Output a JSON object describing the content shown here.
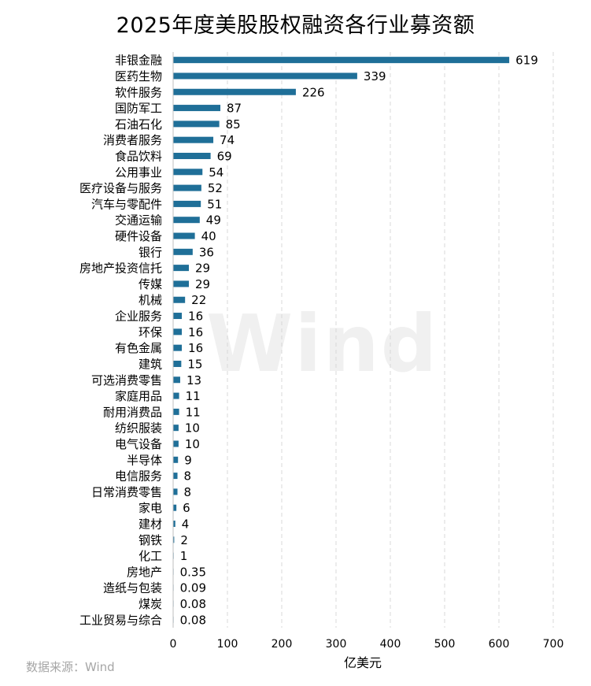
{
  "title": "2025年度美股股权融资各行业募资额",
  "source": "数据来源：Wind",
  "watermark": "Wind",
  "chart_data": {
    "type": "bar",
    "orientation": "horizontal",
    "title": "2025年度美股股权融资各行业募资额",
    "xlabel": "亿美元",
    "ylabel": "",
    "xlim": [
      0,
      700
    ],
    "xticks": [
      0,
      100,
      200,
      300,
      400,
      500,
      600,
      700
    ],
    "grid": "vertical dashed",
    "bar_color": "#1f6f98",
    "categories": [
      "非银金融",
      "医药生物",
      "软件服务",
      "国防军工",
      "石油石化",
      "消费者服务",
      "食品饮料",
      "公用事业",
      "医疗设备与服务",
      "汽车与零配件",
      "交通运输",
      "硬件设备",
      "银行",
      "房地产投资信托",
      "传媒",
      "机械",
      "企业服务",
      "环保",
      "有色金属",
      "建筑",
      "可选消费零售",
      "家庭用品",
      "耐用消费品",
      "纺织服装",
      "电气设备",
      "半导体",
      "电信服务",
      "日常消费零售",
      "家电",
      "建材",
      "钢铁",
      "化工",
      "房地产",
      "造纸与包装",
      "煤炭",
      "工业贸易与综合"
    ],
    "values": [
      619,
      339,
      226,
      87,
      85,
      74,
      69,
      54,
      52,
      51,
      49,
      40,
      36,
      29,
      29,
      22,
      16,
      16,
      16,
      15,
      13,
      11,
      11,
      10,
      10,
      9,
      8,
      8,
      6,
      4,
      2,
      1,
      0.35,
      0.09,
      0.08,
      0.08
    ],
    "value_labels": [
      "619",
      "339",
      "226",
      "87",
      "85",
      "74",
      "69",
      "54",
      "52",
      "51",
      "49",
      "40",
      "36",
      "29",
      "29",
      "22",
      "16",
      "16",
      "16",
      "15",
      "13",
      "11",
      "11",
      "10",
      "10",
      "9",
      "8",
      "8",
      "6",
      "4",
      "2",
      "1",
      "0.35",
      "0.09",
      "0.08",
      "0.08"
    ]
  }
}
